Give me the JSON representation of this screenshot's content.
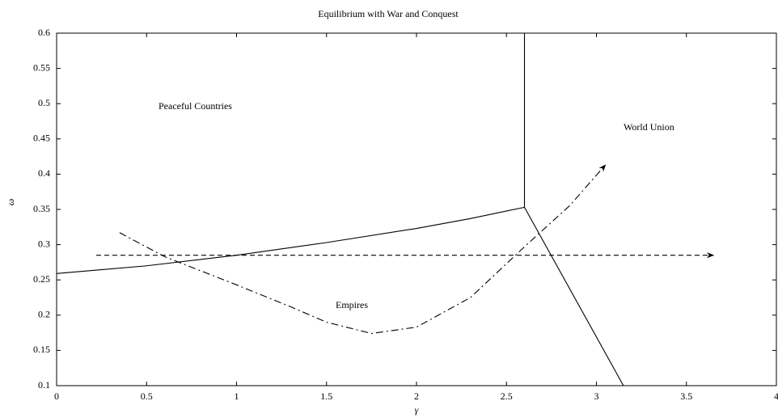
{
  "chart_data": {
    "type": "line",
    "title": "Equilibrium with War and Conquest",
    "x_label": "γ",
    "y_label": "ω",
    "xlim": [
      0,
      4
    ],
    "ylim": [
      0.1,
      0.6
    ],
    "xticks": [
      0,
      0.5,
      1,
      1.5,
      2,
      2.5,
      3,
      3.5,
      4
    ],
    "yticks": [
      0.1,
      0.15,
      0.2,
      0.25,
      0.3,
      0.35,
      0.4,
      0.45,
      0.5,
      0.55,
      0.6
    ],
    "grid": false,
    "series": [
      {
        "color": "#000000",
        "style": "solid",
        "arrow": false,
        "x": [
          0,
          0.5,
          1,
          1.5,
          2,
          2.3,
          2.6
        ],
        "values": [
          0.259,
          0.27,
          0.285,
          0.303,
          0.323,
          0.337,
          0.353
        ]
      },
      {
        "color": "#000000",
        "style": "solid",
        "arrow": false,
        "x": [
          2.6,
          2.6
        ],
        "values": [
          0.353,
          0.6
        ]
      },
      {
        "color": "#000000",
        "style": "solid",
        "arrow": false,
        "x": [
          2.6,
          3.15
        ],
        "values": [
          0.353,
          0.1
        ]
      },
      {
        "color": "#000000",
        "style": "dashed",
        "arrow": true,
        "x": [
          0.22,
          3.65
        ],
        "values": [
          0.285,
          0.285
        ]
      },
      {
        "color": "#000000",
        "style": "dashdot",
        "arrow": true,
        "x": [
          0.35,
          0.6,
          1,
          1.3,
          1.5,
          1.75,
          2,
          2.3,
          2.6,
          2.85,
          3.05
        ],
        "values": [
          0.317,
          0.283,
          0.243,
          0.212,
          0.19,
          0.174,
          0.183,
          0.225,
          0.297,
          0.355,
          0.413
        ]
      }
    ],
    "annotations": [
      "Peaceful Countries",
      "Empires",
      "World Union"
    ]
  }
}
